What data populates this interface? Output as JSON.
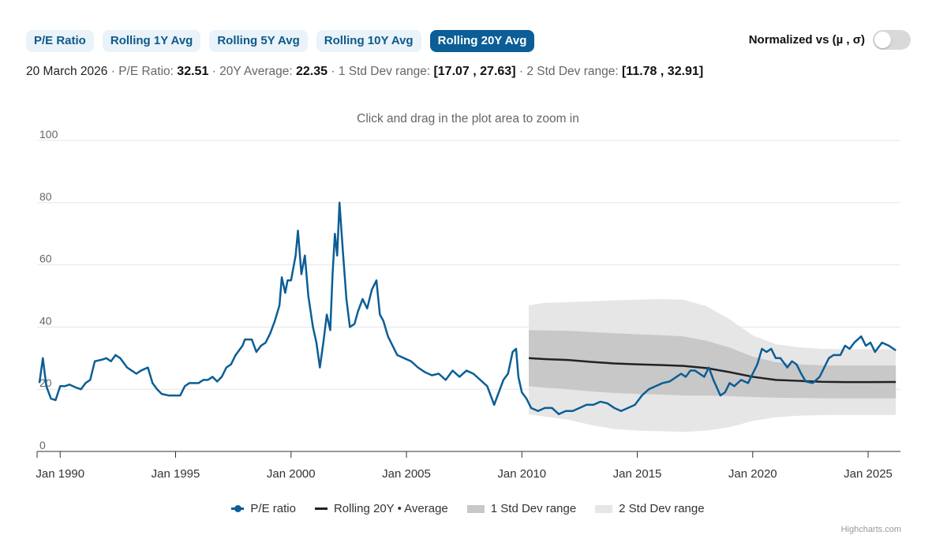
{
  "tabs": [
    {
      "label": "P/E Ratio",
      "active": false
    },
    {
      "label": "Rolling 1Y Avg",
      "active": false
    },
    {
      "label": "Rolling 5Y Avg",
      "active": false
    },
    {
      "label": "Rolling 10Y Avg",
      "active": false
    },
    {
      "label": "Rolling 20Y Avg",
      "active": true
    }
  ],
  "toggle": {
    "label": "Normalized vs (µ , σ)",
    "on": false
  },
  "info": {
    "date": "20 March 2026",
    "sep": "·",
    "pe_label": "P/E Ratio:",
    "pe_value": "32.51",
    "avg_label": "20Y Average:",
    "avg_value": "22.35",
    "std1_label": "1 Std Dev range:",
    "std1_value": "[17.07 , 27.63]",
    "std2_label": "2 Std Dev range:",
    "std2_value": "[11.78 , 32.91]"
  },
  "hint": "Click and drag in the plot area to zoom in",
  "credit": "Highcharts.com",
  "colors": {
    "pe": "#0b5e96",
    "avg": "#222222",
    "std1": "#c8c8c8",
    "std2": "#e6e6e6"
  },
  "legend": [
    {
      "label": "P/E ratio",
      "kind": "pe"
    },
    {
      "label": "Rolling 20Y • Average",
      "kind": "avg"
    },
    {
      "label": "1 Std Dev range",
      "kind": "std1"
    },
    {
      "label": "2 Std Dev range",
      "kind": "std2"
    }
  ],
  "chart_data": {
    "type": "line",
    "xlabel": "",
    "ylabel": "",
    "ylim": [
      0,
      100
    ],
    "yticks": [
      0,
      20,
      40,
      60,
      80,
      100
    ],
    "xlim": [
      1989.0,
      2026.4
    ],
    "xticks": [
      {
        "x": 1990,
        "label": "Jan 1990"
      },
      {
        "x": 1995,
        "label": "Jan 1995"
      },
      {
        "x": 2000,
        "label": "Jan 2000"
      },
      {
        "x": 2005,
        "label": "Jan 2005"
      },
      {
        "x": 2010,
        "label": "Jan 2010"
      },
      {
        "x": 2015,
        "label": "Jan 2015"
      },
      {
        "x": 2020,
        "label": "Jan 2020"
      },
      {
        "x": 2025,
        "label": "Jan 2025"
      }
    ],
    "series": [
      {
        "name": "P/E ratio",
        "kind": "line",
        "points": [
          [
            1989.1,
            22
          ],
          [
            1989.25,
            30
          ],
          [
            1989.4,
            21
          ],
          [
            1989.6,
            17
          ],
          [
            1989.8,
            16.5
          ],
          [
            1990.0,
            21
          ],
          [
            1990.2,
            21
          ],
          [
            1990.4,
            21.5
          ],
          [
            1990.7,
            20.5
          ],
          [
            1990.9,
            20
          ],
          [
            1991.1,
            22
          ],
          [
            1991.3,
            23
          ],
          [
            1991.5,
            29
          ],
          [
            1991.8,
            29.5
          ],
          [
            1992.0,
            30
          ],
          [
            1992.2,
            29
          ],
          [
            1992.4,
            31
          ],
          [
            1992.6,
            30
          ],
          [
            1992.9,
            27
          ],
          [
            1993.1,
            26
          ],
          [
            1993.3,
            25
          ],
          [
            1993.5,
            26
          ],
          [
            1993.8,
            27
          ],
          [
            1994.0,
            22
          ],
          [
            1994.2,
            20
          ],
          [
            1994.4,
            18.5
          ],
          [
            1994.7,
            18
          ],
          [
            1995.0,
            18
          ],
          [
            1995.2,
            18
          ],
          [
            1995.4,
            21
          ],
          [
            1995.6,
            22
          ],
          [
            1995.8,
            22
          ],
          [
            1996.0,
            22
          ],
          [
            1996.2,
            23
          ],
          [
            1996.4,
            23
          ],
          [
            1996.6,
            24
          ],
          [
            1996.8,
            22.5
          ],
          [
            1997.0,
            24
          ],
          [
            1997.2,
            27
          ],
          [
            1997.4,
            28
          ],
          [
            1997.6,
            31
          ],
          [
            1997.9,
            34
          ],
          [
            1998.0,
            36
          ],
          [
            1998.3,
            36
          ],
          [
            1998.5,
            32
          ],
          [
            1998.7,
            34
          ],
          [
            1998.9,
            35
          ],
          [
            1999.1,
            38
          ],
          [
            1999.3,
            42
          ],
          [
            1999.5,
            47
          ],
          [
            1999.6,
            56
          ],
          [
            1999.75,
            51
          ],
          [
            1999.85,
            55
          ],
          [
            2000.0,
            55
          ],
          [
            2000.2,
            63
          ],
          [
            2000.3,
            71
          ],
          [
            2000.45,
            57
          ],
          [
            2000.6,
            63
          ],
          [
            2000.75,
            50
          ],
          [
            2000.95,
            40
          ],
          [
            2001.1,
            35
          ],
          [
            2001.25,
            27
          ],
          [
            2001.4,
            35
          ],
          [
            2001.55,
            44
          ],
          [
            2001.7,
            39
          ],
          [
            2001.8,
            57
          ],
          [
            2001.9,
            70
          ],
          [
            2002.0,
            63
          ],
          [
            2002.1,
            80
          ],
          [
            2002.25,
            64
          ],
          [
            2002.4,
            49
          ],
          [
            2002.55,
            40
          ],
          [
            2002.75,
            41
          ],
          [
            2002.9,
            45
          ],
          [
            2003.1,
            49
          ],
          [
            2003.3,
            46
          ],
          [
            2003.5,
            52
          ],
          [
            2003.7,
            55
          ],
          [
            2003.85,
            44
          ],
          [
            2004.0,
            42
          ],
          [
            2004.2,
            37
          ],
          [
            2004.4,
            34
          ],
          [
            2004.6,
            31
          ],
          [
            2004.9,
            30
          ],
          [
            2005.2,
            29
          ],
          [
            2005.5,
            27
          ],
          [
            2005.8,
            25.5
          ],
          [
            2006.1,
            24.5
          ],
          [
            2006.4,
            25
          ],
          [
            2006.7,
            23
          ],
          [
            2007.0,
            26
          ],
          [
            2007.3,
            24
          ],
          [
            2007.6,
            26
          ],
          [
            2007.9,
            25
          ],
          [
            2008.2,
            23
          ],
          [
            2008.5,
            21
          ],
          [
            2008.8,
            15
          ],
          [
            2009.0,
            19
          ],
          [
            2009.2,
            23
          ],
          [
            2009.4,
            25
          ],
          [
            2009.6,
            32
          ],
          [
            2009.75,
            33
          ],
          [
            2009.85,
            24
          ],
          [
            2010.0,
            19
          ],
          [
            2010.2,
            17
          ],
          [
            2010.4,
            14
          ],
          [
            2010.7,
            13
          ],
          [
            2011.0,
            14
          ],
          [
            2011.3,
            14
          ],
          [
            2011.6,
            12
          ],
          [
            2011.9,
            13
          ],
          [
            2012.2,
            13
          ],
          [
            2012.5,
            14
          ],
          [
            2012.8,
            15
          ],
          [
            2013.1,
            15
          ],
          [
            2013.4,
            16
          ],
          [
            2013.7,
            15.5
          ],
          [
            2014.0,
            14
          ],
          [
            2014.3,
            13
          ],
          [
            2014.6,
            14
          ],
          [
            2014.9,
            15
          ],
          [
            2015.2,
            18
          ],
          [
            2015.5,
            20
          ],
          [
            2015.8,
            21
          ],
          [
            2016.1,
            22
          ],
          [
            2016.4,
            22.5
          ],
          [
            2016.7,
            24
          ],
          [
            2016.9,
            25
          ],
          [
            2017.1,
            24
          ],
          [
            2017.3,
            26
          ],
          [
            2017.5,
            26
          ],
          [
            2017.7,
            25
          ],
          [
            2017.9,
            24
          ],
          [
            2018.1,
            27
          ],
          [
            2018.3,
            23
          ],
          [
            2018.6,
            18
          ],
          [
            2018.8,
            19
          ],
          [
            2019.0,
            22
          ],
          [
            2019.2,
            21
          ],
          [
            2019.5,
            23
          ],
          [
            2019.8,
            22
          ],
          [
            2020.0,
            25
          ],
          [
            2020.2,
            28
          ],
          [
            2020.4,
            33
          ],
          [
            2020.6,
            32
          ],
          [
            2020.8,
            33
          ],
          [
            2021.0,
            30
          ],
          [
            2021.2,
            30
          ],
          [
            2021.5,
            27
          ],
          [
            2021.7,
            29
          ],
          [
            2021.9,
            28
          ],
          [
            2022.1,
            25
          ],
          [
            2022.3,
            22.5
          ],
          [
            2022.6,
            22
          ],
          [
            2022.9,
            24
          ],
          [
            2023.1,
            27
          ],
          [
            2023.3,
            30
          ],
          [
            2023.5,
            31
          ],
          [
            2023.8,
            31
          ],
          [
            2024.0,
            34
          ],
          [
            2024.2,
            33
          ],
          [
            2024.4,
            35
          ],
          [
            2024.7,
            37
          ],
          [
            2024.9,
            34
          ],
          [
            2025.1,
            35
          ],
          [
            2025.3,
            32
          ],
          [
            2025.6,
            35
          ],
          [
            2025.9,
            34
          ],
          [
            2026.1,
            33
          ],
          [
            2026.2,
            32.5
          ]
        ]
      },
      {
        "name": "Rolling 20Y • Average",
        "kind": "line",
        "points": [
          [
            2010.3,
            30
          ],
          [
            2011,
            29.7
          ],
          [
            2012,
            29.4
          ],
          [
            2013,
            28.8
          ],
          [
            2014,
            28.3
          ],
          [
            2015,
            28
          ],
          [
            2016,
            27.8
          ],
          [
            2017,
            27.5
          ],
          [
            2018,
            26.8
          ],
          [
            2019,
            25.5
          ],
          [
            2020,
            24
          ],
          [
            2021,
            23
          ],
          [
            2022,
            22.7
          ],
          [
            2023,
            22.4
          ],
          [
            2024,
            22.3
          ],
          [
            2025,
            22.3
          ],
          [
            2026,
            22.35
          ],
          [
            2026.2,
            22.35
          ]
        ]
      },
      {
        "name": "1 Std Dev range",
        "kind": "band",
        "points": [
          [
            2010.3,
            21,
            39
          ],
          [
            2011,
            20.5,
            38.9
          ],
          [
            2012,
            20,
            38.8
          ],
          [
            2013,
            19.3,
            38.4
          ],
          [
            2014,
            18.8,
            38
          ],
          [
            2015,
            18.5,
            37.7
          ],
          [
            2016,
            18.3,
            37.4
          ],
          [
            2017,
            18,
            37
          ],
          [
            2018,
            18,
            35.6
          ],
          [
            2019,
            17.8,
            33.4
          ],
          [
            2020,
            17.5,
            30.5
          ],
          [
            2021,
            17.3,
            28.7
          ],
          [
            2022,
            17.2,
            28
          ],
          [
            2023,
            17.1,
            27.7
          ],
          [
            2024,
            17.07,
            27.63
          ],
          [
            2026.2,
            17.07,
            27.63
          ]
        ]
      },
      {
        "name": "2 Std Dev range",
        "kind": "band",
        "points": [
          [
            2010.3,
            12,
            47
          ],
          [
            2011,
            11.2,
            47.8
          ],
          [
            2012,
            10.2,
            48
          ],
          [
            2013,
            8.5,
            48.3
          ],
          [
            2014,
            7.2,
            48.6
          ],
          [
            2015,
            6.7,
            48.8
          ],
          [
            2016,
            6.5,
            49
          ],
          [
            2017,
            6.3,
            48.8
          ],
          [
            2018,
            6.7,
            46.7
          ],
          [
            2019,
            7.8,
            42.5
          ],
          [
            2020,
            9.8,
            37.3
          ],
          [
            2021,
            11,
            34.5
          ],
          [
            2022,
            11.5,
            33.5
          ],
          [
            2023,
            11.7,
            33
          ],
          [
            2024,
            11.78,
            32.91
          ],
          [
            2026.2,
            11.78,
            32.91
          ]
        ]
      }
    ]
  }
}
